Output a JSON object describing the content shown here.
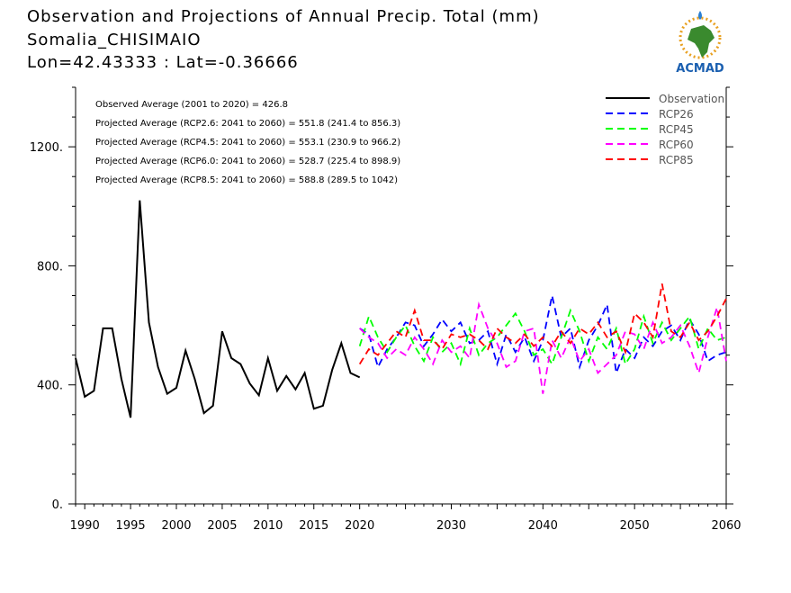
{
  "header": {
    "line1": "Observation and Projections of Annual Precip. Total (mm)",
    "line2": "Somalia_CHISIMAIO",
    "line3": "Lon=42.43333 : Lat=-0.36666"
  },
  "logo": {
    "text": "ACMAD",
    "icon": "acmad-africa-logo-icon"
  },
  "colors": {
    "observation": "#000000",
    "RCP26": "#0000ff",
    "RCP45": "#00ff00",
    "RCP60": "#ff00ff",
    "RCP85": "#ff0000"
  },
  "chart_data": {
    "type": "line",
    "title": "Observation and Projections of Annual Precip. Total (mm)",
    "xlim": [
      1989,
      2060
    ],
    "ylim": [
      0,
      1400
    ],
    "x_ticks_minor": [
      1990,
      1995,
      2000,
      2005,
      2010,
      2015,
      2020
    ],
    "x_ticks_major": [
      2030,
      2040,
      2050,
      2060
    ],
    "x_tick_labels": [
      "1990",
      "1995",
      "2000",
      "2005",
      "2010",
      "2015",
      "2020",
      "2030",
      "2040",
      "2050",
      "2060"
    ],
    "y_ticks": [
      0,
      400,
      800,
      1200
    ],
    "y_tick_labels": [
      "0.",
      "400.",
      "800.",
      "1200."
    ],
    "annotations": [
      "Observed Average (2001 to 2020) = 426.8",
      "Projected Average (RCP2.6: 2041 to 2060) = 551.8 (241.4 to 856.3)",
      "Projected Average (RCP4.5: 2041 to 2060) = 553.1 (230.9 to 966.2)",
      "Projected Average (RCP6.0: 2041 to 2060) = 528.7 (225.4 to 898.9)",
      "Projected Average (RCP8.5: 2041 to 2060) = 588.8 (289.5 to 1042)"
    ],
    "legend_position": "top-right",
    "series": [
      {
        "name": "Observation",
        "style": "solid",
        "color": "#000000",
        "x": [
          1989,
          1990,
          1991,
          1992,
          1993,
          1994,
          1995,
          1996,
          1997,
          1998,
          1999,
          2000,
          2001,
          2002,
          2003,
          2004,
          2005,
          2006,
          2007,
          2008,
          2009,
          2010,
          2011,
          2012,
          2013,
          2014,
          2015,
          2016,
          2017,
          2018,
          2019,
          2020
        ],
        "y": [
          490,
          360,
          380,
          590,
          590,
          420,
          290,
          1020,
          610,
          460,
          370,
          390,
          515,
          420,
          305,
          330,
          580,
          490,
          470,
          405,
          365,
          490,
          380,
          430,
          385,
          440,
          320,
          330,
          450,
          540,
          440,
          425
        ]
      },
      {
        "name": "RCP26",
        "style": "dashed",
        "color": "#0000ff",
        "x": [
          2020,
          2021,
          2022,
          2023,
          2024,
          2025,
          2026,
          2027,
          2028,
          2029,
          2030,
          2031,
          2032,
          2033,
          2034,
          2035,
          2036,
          2037,
          2038,
          2039,
          2040,
          2041,
          2042,
          2043,
          2044,
          2045,
          2046,
          2047,
          2048,
          2049,
          2050,
          2051,
          2052,
          2053,
          2054,
          2055,
          2056,
          2057,
          2058,
          2059,
          2060
        ],
        "y": [
          590,
          570,
          460,
          520,
          560,
          610,
          600,
          530,
          570,
          620,
          580,
          610,
          540,
          550,
          580,
          470,
          570,
          510,
          560,
          480,
          550,
          700,
          560,
          590,
          460,
          550,
          600,
          670,
          440,
          520,
          490,
          560,
          530,
          580,
          600,
          550,
          620,
          570,
          480,
          500,
          510
        ]
      },
      {
        "name": "RCP45",
        "style": "dashed",
        "color": "#00ff00",
        "x": [
          2020,
          2021,
          2022,
          2023,
          2024,
          2025,
          2026,
          2027,
          2028,
          2029,
          2030,
          2031,
          2032,
          2033,
          2034,
          2035,
          2036,
          2037,
          2038,
          2039,
          2040,
          2041,
          2042,
          2043,
          2044,
          2045,
          2046,
          2047,
          2048,
          2049,
          2050,
          2051,
          2052,
          2053,
          2054,
          2055,
          2056,
          2057,
          2058,
          2059,
          2060
        ],
        "y": [
          530,
          630,
          560,
          510,
          560,
          600,
          530,
          480,
          560,
          510,
          540,
          470,
          590,
          500,
          540,
          560,
          600,
          640,
          580,
          500,
          520,
          470,
          560,
          650,
          580,
          480,
          560,
          520,
          590,
          470,
          520,
          630,
          540,
          610,
          550,
          590,
          630,
          520,
          590,
          550,
          560
        ]
      },
      {
        "name": "RCP60",
        "style": "dashed",
        "color": "#ff00ff",
        "x": [
          2020,
          2021,
          2022,
          2023,
          2024,
          2025,
          2026,
          2027,
          2028,
          2029,
          2030,
          2031,
          2032,
          2033,
          2034,
          2035,
          2036,
          2037,
          2038,
          2039,
          2040,
          2041,
          2042,
          2043,
          2044,
          2045,
          2046,
          2047,
          2048,
          2049,
          2050,
          2051,
          2052,
          2053,
          2054,
          2055,
          2056,
          2057,
          2058,
          2059,
          2060
        ],
        "y": [
          590,
          560,
          540,
          490,
          520,
          500,
          560,
          520,
          470,
          550,
          510,
          530,
          490,
          670,
          590,
          540,
          460,
          480,
          580,
          590,
          370,
          550,
          490,
          560,
          480,
          520,
          440,
          470,
          500,
          580,
          570,
          520,
          610,
          540,
          560,
          600,
          530,
          440,
          560,
          660,
          480
        ]
      },
      {
        "name": "RCP85",
        "style": "dashed",
        "color": "#ff0000",
        "x": [
          2020,
          2021,
          2022,
          2023,
          2024,
          2025,
          2026,
          2027,
          2028,
          2029,
          2030,
          2031,
          2032,
          2033,
          2034,
          2035,
          2036,
          2037,
          2038,
          2039,
          2040,
          2041,
          2042,
          2043,
          2044,
          2045,
          2046,
          2047,
          2048,
          2049,
          2050,
          2051,
          2052,
          2053,
          2054,
          2055,
          2056,
          2057,
          2058,
          2059,
          2060
        ],
        "y": [
          470,
          520,
          500,
          540,
          580,
          560,
          650,
          550,
          550,
          520,
          570,
          560,
          570,
          550,
          520,
          590,
          560,
          540,
          570,
          530,
          560,
          530,
          580,
          540,
          590,
          570,
          610,
          560,
          580,
          510,
          640,
          610,
          560,
          740,
          580,
          560,
          610,
          550,
          580,
          630,
          690
        ]
      }
    ]
  }
}
